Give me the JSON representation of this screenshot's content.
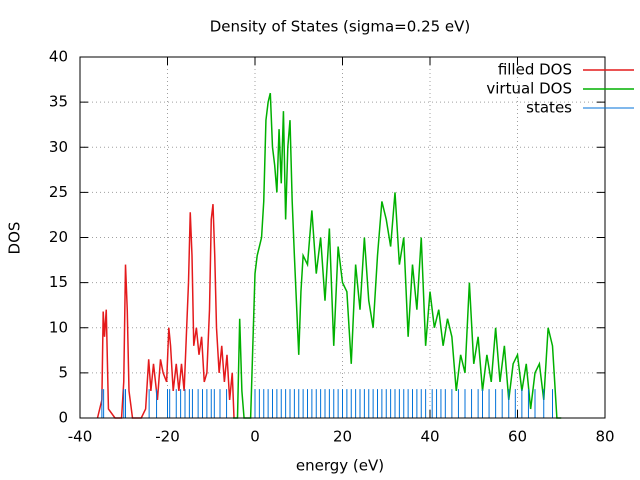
{
  "chart_data": {
    "type": "line",
    "title": "Density of States (sigma=0.25 eV)",
    "xlabel": "energy (eV)",
    "ylabel": "DOS",
    "xlim": [
      -40,
      80
    ],
    "xticks": [
      -40,
      -20,
      0,
      20,
      40,
      60,
      80
    ],
    "ylim": [
      0,
      40
    ],
    "yticks": [
      0,
      5,
      10,
      15,
      20,
      25,
      30,
      35,
      40
    ],
    "grid": true,
    "legend": "top right",
    "series": [
      {
        "name": "filled DOS",
        "color": "#e41a1c",
        "style": "line",
        "x": [
          -36,
          -35,
          -34.7,
          -34.4,
          -34,
          -33.5,
          -32,
          -30.5,
          -30,
          -29.6,
          -29.2,
          -28.8,
          -28,
          -26,
          -25,
          -24.3,
          -23.8,
          -23.2,
          -22.3,
          -21.6,
          -21,
          -20.2,
          -19.7,
          -19.3,
          -18.7,
          -18,
          -17.4,
          -16.8,
          -16.2,
          -15.7,
          -15.2,
          -14.8,
          -14.4,
          -14,
          -13.4,
          -12.8,
          -12.2,
          -11.6,
          -11,
          -10.4,
          -10,
          -9.6,
          -9.2,
          -8.8,
          -8.2,
          -7.6,
          -7,
          -6.4,
          -5.8,
          -5.2,
          -4.8
        ],
        "values": [
          0,
          2,
          11.8,
          9,
          12,
          1,
          0,
          0,
          4,
          17,
          12,
          3,
          0,
          0,
          1,
          6.5,
          3,
          6,
          2,
          6.5,
          5,
          4,
          10,
          8,
          3,
          6,
          3,
          6,
          3,
          9,
          15,
          22.8,
          18,
          8,
          10,
          7,
          9,
          4,
          5,
          12,
          22,
          23.7,
          18,
          10,
          5,
          8,
          4,
          7,
          2,
          5,
          0
        ]
      },
      {
        "name": "virtual DOS",
        "color": "#00b000",
        "style": "line",
        "x": [
          -5,
          -4,
          -3.5,
          -3,
          -2.5,
          -1,
          0,
          0.5,
          1,
          1.5,
          2,
          2.5,
          3,
          3.5,
          4,
          4.5,
          5,
          5.5,
          6,
          6.5,
          7,
          7.5,
          8,
          8.5,
          9,
          10,
          10.5,
          11,
          12,
          13,
          14,
          15,
          16,
          17,
          18,
          19,
          20,
          21,
          22,
          23,
          24,
          25,
          26,
          27,
          28,
          29,
          30,
          31,
          32,
          33,
          34,
          35,
          36,
          37,
          38,
          39,
          40,
          41,
          42,
          43,
          44,
          45,
          46,
          47,
          48,
          49,
          50,
          51,
          52,
          53,
          54,
          55,
          56,
          57,
          58,
          59,
          60,
          61,
          62,
          63,
          64,
          65,
          66,
          67,
          68,
          69,
          70
        ],
        "values": [
          0,
          0,
          11,
          3,
          0,
          0,
          16,
          18,
          19,
          20,
          24,
          33,
          35,
          36,
          30,
          28,
          25,
          32,
          26,
          34,
          22,
          30,
          33,
          24,
          18,
          7,
          14,
          18,
          17,
          23,
          16,
          20,
          13,
          21,
          8,
          19,
          15,
          14,
          6,
          17,
          12,
          20,
          13,
          10,
          18,
          24,
          22,
          19,
          25,
          17,
          20,
          9,
          17,
          12,
          20,
          8,
          14,
          10,
          12,
          8,
          11,
          9,
          3,
          7,
          5,
          15,
          6,
          9,
          3,
          7,
          4,
          10,
          4,
          8,
          2,
          6,
          7,
          3,
          6,
          1,
          5,
          6,
          2,
          10,
          8,
          0,
          0
        ]
      },
      {
        "name": "states",
        "color": "#0072d8",
        "style": "impulses",
        "x": [
          -35,
          -34.6,
          -30,
          -29.6,
          -24.2,
          -22.5,
          -20,
          -19.5,
          -18,
          -17,
          -16,
          -15,
          -14.3,
          -13,
          -12,
          -11,
          -10,
          -9.3,
          -8,
          -6.5,
          0,
          1,
          2,
          3,
          4,
          5,
          6,
          7,
          8,
          9,
          10,
          11,
          12,
          13,
          14,
          15,
          16,
          17,
          18,
          19,
          20,
          21,
          22,
          23,
          24,
          25,
          26,
          27,
          28,
          29,
          30,
          31,
          32,
          33,
          34,
          35,
          36,
          37,
          38,
          39,
          40.5,
          41.5,
          42.5,
          43.5,
          45,
          46.5,
          48,
          49.5,
          51,
          52,
          53.5,
          55,
          56.5,
          58,
          59.5,
          61,
          62.5,
          64,
          66,
          68
        ],
        "values": [
          3.2,
          3.2,
          3.2,
          3.2,
          3.2,
          3.2,
          3.2,
          3.2,
          3.2,
          3.2,
          3.2,
          3.2,
          3.2,
          3.2,
          3.2,
          3.2,
          3.2,
          3.2,
          3.2,
          3.2,
          3.2,
          3.2,
          3.2,
          3.2,
          3.2,
          3.2,
          3.2,
          3.2,
          3.2,
          3.2,
          3.2,
          3.2,
          3.2,
          3.2,
          3.2,
          3.2,
          3.2,
          3.2,
          3.2,
          3.2,
          3.2,
          3.2,
          3.2,
          3.2,
          3.2,
          3.2,
          3.2,
          3.2,
          3.2,
          3.2,
          3.2,
          3.2,
          3.2,
          3.2,
          3.2,
          3.2,
          3.2,
          3.2,
          3.2,
          3.2,
          3.2,
          3.2,
          3.2,
          3.2,
          3.2,
          3.2,
          3.2,
          3.2,
          3.2,
          3.2,
          3.2,
          3.2,
          3.2,
          3.2,
          3.2,
          3.2,
          3.2,
          3.2,
          3.2,
          3.2
        ]
      }
    ]
  }
}
